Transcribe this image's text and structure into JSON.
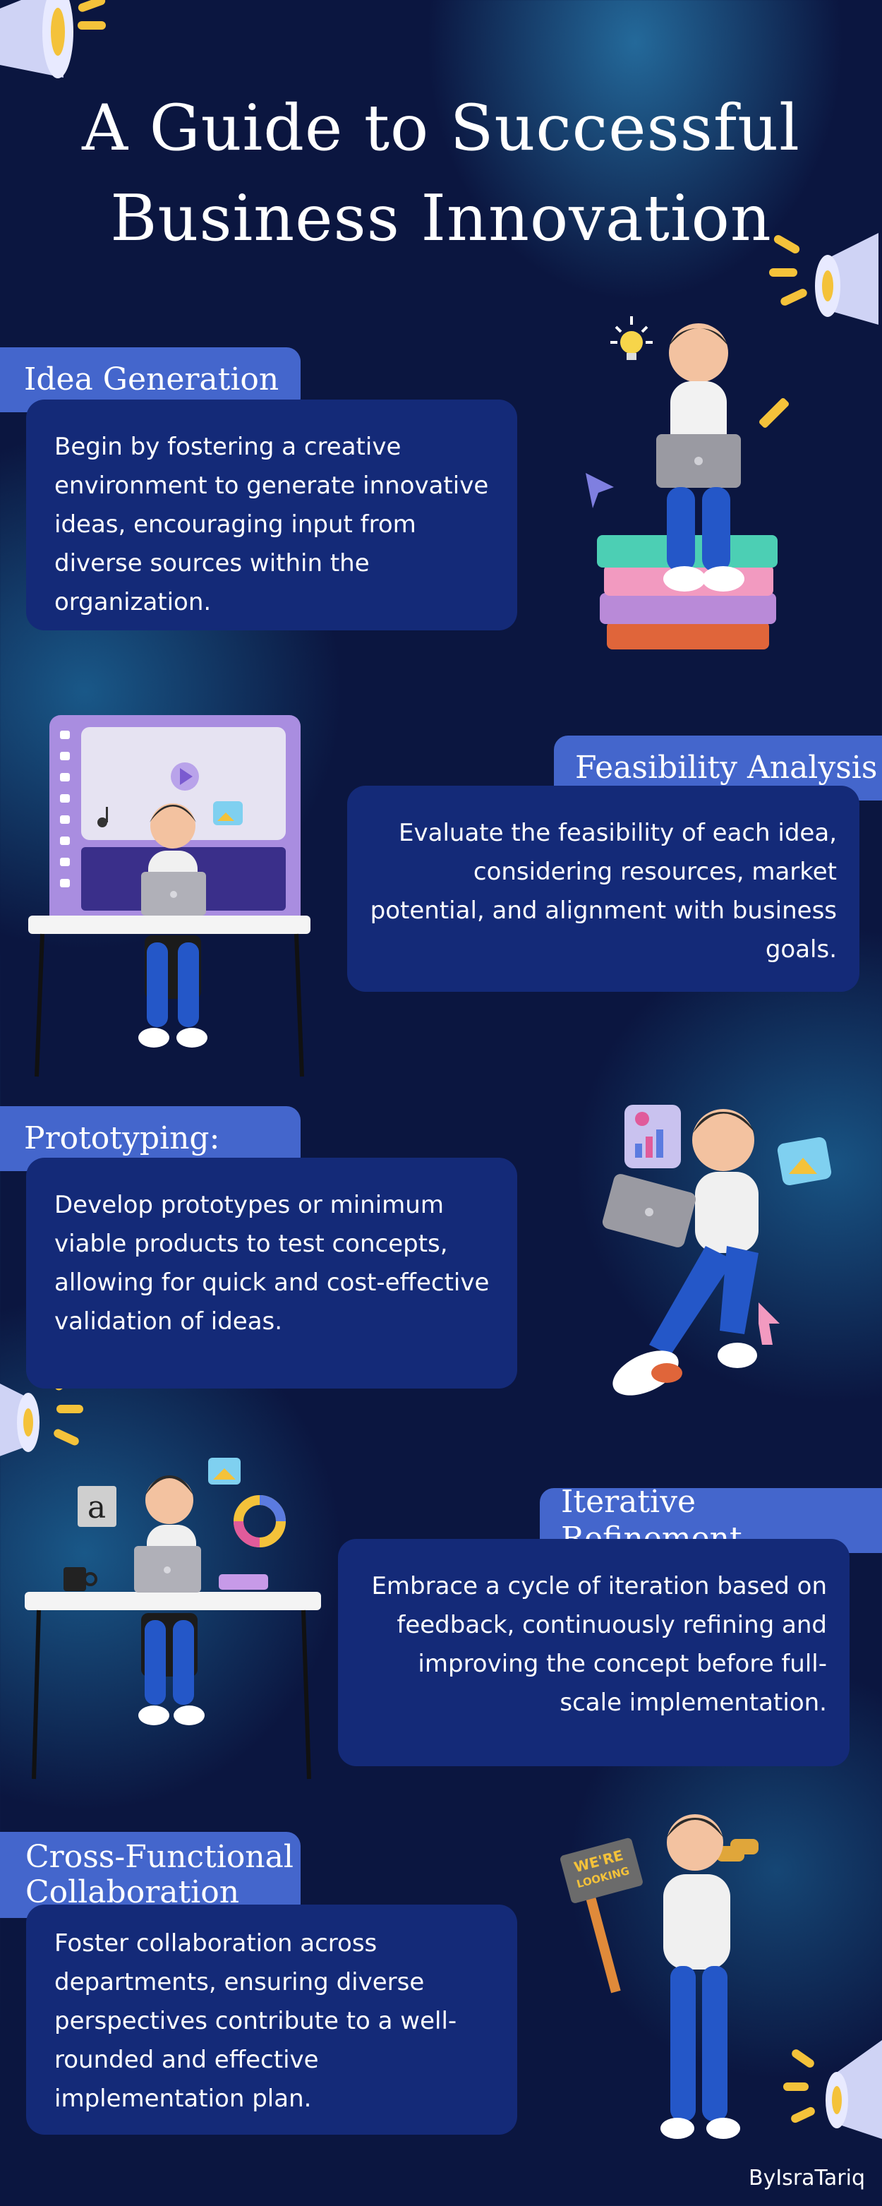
{
  "title": {
    "line1": "A Guide to Successful",
    "line2": "Business Innovation"
  },
  "sections": [
    {
      "heading": "Idea Generation",
      "body": "Begin by fostering a creative environment to generate innovative ideas, encouraging input from diverse sources within the organization."
    },
    {
      "heading": "Feasibility Analysis",
      "body": "Evaluate the feasibility of each idea, considering resources, market potential, and alignment with business goals."
    },
    {
      "heading": "Prototyping:",
      "body": "Develop prototypes or minimum viable products to test concepts, allowing for quick and cost-effective validation of ideas."
    },
    {
      "heading": "Iterative Refinement",
      "body": "Embrace a cycle of iteration based on feedback, continuously refining and improving the concept before full-scale implementation."
    },
    {
      "heading_line1": "Cross-Functional",
      "heading_line2": "Collaboration",
      "body": "Foster collaboration across departments, ensuring diverse perspectives contribute to a well-rounded and effective implementation plan."
    }
  ],
  "sign_text_line1": "WE'RE",
  "sign_text_line2": "LOOKING",
  "credit": "ByIsraTariq",
  "colors": {
    "background": "#0b1640",
    "tag": "#4466cc",
    "card": "#142a78",
    "text": "#ffffff"
  },
  "icons": [
    "megaphone-icon",
    "lightbulb-icon",
    "pencil-icon",
    "laptop-icon",
    "books-icon",
    "play-icon",
    "music-note-icon",
    "image-icon",
    "chart-icon",
    "cursor-icon",
    "donut-chart-icon",
    "coffee-mug-icon",
    "binoculars-icon",
    "sign-icon"
  ]
}
